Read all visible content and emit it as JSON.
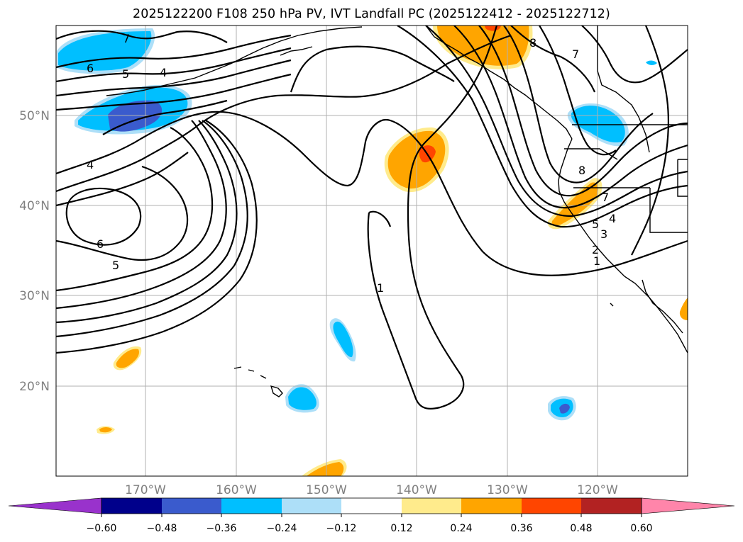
{
  "title": "2025122200 F108 250 hPa PV, IVT Landfall PC (2025122412 - 2025122712)",
  "map": {
    "lon_ticks": [
      "170°W",
      "160°W",
      "150°W",
      "140°W",
      "130°W",
      "120°W"
    ],
    "lat_ticks": [
      "50°N",
      "40°N",
      "30°N",
      "20°N"
    ],
    "contour_labels": [
      "7",
      "6",
      "5",
      "4",
      "4",
      "6",
      "5",
      "1",
      "8",
      "7",
      "8",
      "7",
      "5",
      "4",
      "3",
      "2",
      "1"
    ]
  },
  "colorbar": {
    "ticks": [
      "−0.60",
      "−0.48",
      "−0.36",
      "−0.24",
      "−0.12",
      "0.12",
      "0.24",
      "0.36",
      "0.48",
      "0.60"
    ],
    "colors": {
      "under": "#9932CC",
      "b1": "#00008B",
      "b2": "#3A5BCD",
      "b3": "#00BFFF",
      "b4": "#ADDFF8",
      "b5": "#FFFFFF",
      "b6": "#FFEB8C",
      "b7": "#FFA500",
      "b8": "#FF4500",
      "b9": "#B22222",
      "over": "#FF85AA"
    }
  }
}
